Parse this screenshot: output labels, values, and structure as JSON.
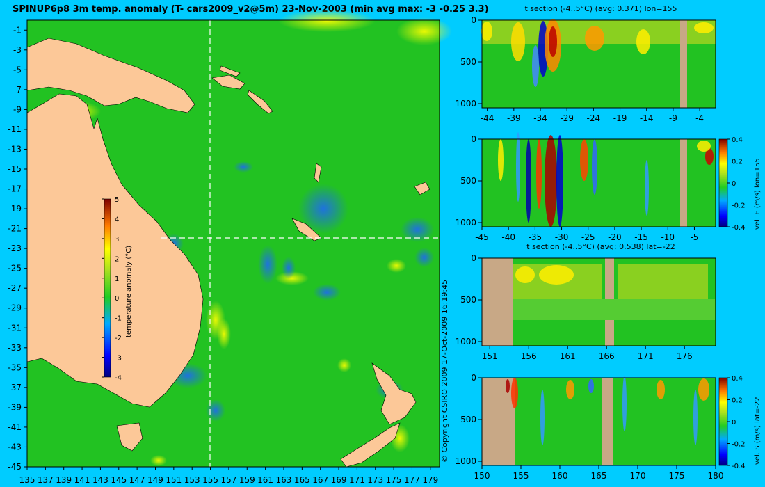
{
  "main_title": "SPINUP6p8 3m temp. anomaly (T- cars2009_v2@5m) 23-Nov-2003 (min avg max: -3 -0.25 3.3)",
  "copyright": "© Copyright CSIRO 2009   17-Oct-2009 16:19:45",
  "colors": {
    "background": "#00ccff",
    "land": "#fcc898",
    "section_land": "#c8a886",
    "ocean_base": "#22c222"
  },
  "chart_data": [
    {
      "type": "heatmap",
      "name": "map",
      "title": "",
      "x_ticks": [
        "135",
        "137",
        "139",
        "141",
        "143",
        "145",
        "147",
        "149",
        "151",
        "153",
        "155",
        "157",
        "159",
        "161",
        "163",
        "165",
        "167",
        "169",
        "171",
        "173",
        "175",
        "177",
        "179"
      ],
      "y_ticks": [
        "-1",
        "-3",
        "-5",
        "-7",
        "-9",
        "-11",
        "-13",
        "-15",
        "-17",
        "-19",
        "-21",
        "-23",
        "-25",
        "-27",
        "-29",
        "-31",
        "-33",
        "-35",
        "-37",
        "-39",
        "-41",
        "-43",
        "-45"
      ],
      "xlim": [
        135,
        180
      ],
      "ylim": [
        -45,
        0
      ],
      "section_lon": 155,
      "section_lat": -22,
      "colorbar": {
        "label": "temperature anomaly (°C)",
        "ticks": [
          "5",
          "4",
          "3",
          "2",
          "1",
          "0",
          "-1",
          "-2",
          "-3",
          "-4"
        ],
        "range": [
          -4,
          5
        ]
      }
    },
    {
      "type": "heatmap",
      "name": "t-section-lon",
      "title": "t section (-4..5°C) (avg: 0.371) lon=155",
      "x_ticks": [
        "-44",
        "-39",
        "-34",
        "-29",
        "-24",
        "-19",
        "-14",
        "-9",
        "-4"
      ],
      "y_ticks": [
        "0",
        "500",
        "1000"
      ],
      "xlim": [
        -45,
        -1
      ],
      "ylim": [
        1050,
        0
      ]
    },
    {
      "type": "heatmap",
      "name": "vel-e-section",
      "title": "",
      "x_ticks": [
        "-45",
        "-40",
        "-35",
        "-30",
        "-25",
        "-20",
        "-15",
        "-10",
        "-5"
      ],
      "y_ticks": [
        "0",
        "500",
        "1000"
      ],
      "xlim": [
        -45,
        -1
      ],
      "ylim": [
        1050,
        0
      ],
      "colorbar": {
        "label": "vel. E (m/s) lon=155",
        "ticks": [
          "0.4",
          "0.2",
          "0",
          "-0.2",
          "-0.4"
        ]
      }
    },
    {
      "type": "heatmap",
      "name": "t-section-lat",
      "title": "t section (-4..5°C) (avg: 0.538) lat=-22",
      "x_ticks": [
        "151",
        "156",
        "161",
        "166",
        "171",
        "176"
      ],
      "y_ticks": [
        "0",
        "500",
        "1000"
      ],
      "xlim": [
        150,
        180
      ],
      "ylim": [
        1050,
        0
      ]
    },
    {
      "type": "heatmap",
      "name": "vel-s-section",
      "title": "",
      "x_ticks": [
        "150",
        "155",
        "160",
        "165",
        "170",
        "175",
        "180"
      ],
      "y_ticks": [
        "0",
        "500",
        "1000"
      ],
      "xlim": [
        150,
        180
      ],
      "ylim": [
        1050,
        0
      ],
      "colorbar": {
        "label": "vel. S (m/s) lat=-22",
        "ticks": [
          "0.4",
          "0.2",
          "0",
          "-0.2",
          "-0.4"
        ]
      }
    }
  ]
}
